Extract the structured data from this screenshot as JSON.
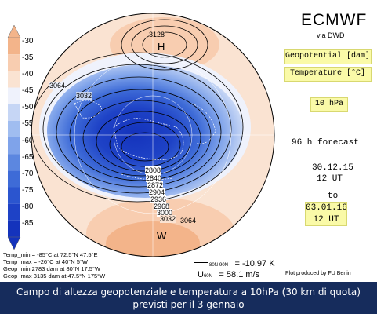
{
  "header": {
    "title": "ECMWF",
    "subtitle": "via DWD"
  },
  "variables": {
    "geopotential": "Geopotential [dam]",
    "temperature": "Temperature [°C]"
  },
  "level": "10 hPa",
  "forecast": {
    "label": "96 h forecast",
    "init_date": "30.12.15",
    "init_time": "12 UT",
    "to_label": "to",
    "valid_date": "03.01.16",
    "valid_time": "12 UT"
  },
  "legend": {
    "labels": [
      "-30",
      "-35",
      "-40",
      "-45",
      "-50",
      "-55",
      "-60",
      "-65",
      "-70",
      "-75",
      "-80",
      "-85"
    ],
    "colors": [
      "#f3b48a",
      "#f8cdb0",
      "#fae3d2",
      "#eff2fc",
      "#c6d6f5",
      "#a0bdf0",
      "#7fa3ea",
      "#5c87e0",
      "#3e6bd7",
      "#2b55cf",
      "#1e42c6",
      "#1433bc"
    ]
  },
  "map": {
    "contour_labels": [
      "3128",
      "3064",
      "3032",
      "2808",
      "2840",
      "2872",
      "2904",
      "2936",
      "2968",
      "3000",
      "3032",
      "3064"
    ],
    "high_label": "H",
    "warm_label": "W"
  },
  "stats": [
    "Temp_min = -85°C at 72.5°N 47.5°E",
    "Temp_max = -26°C at 40°N 5°W",
    "Geop_min 2783 dam at 80°N 17.5°W",
    "Geop_max 3135 dam at 47.5°N 175°W"
  ],
  "mean": {
    "temp_sub": "80N-90N",
    "temp_value": "= -10.97 K",
    "wind_sym": "U",
    "wind_sub": "60N",
    "wind_value": "= 58.1 m/s"
  },
  "credit": "Plot produced by FU Berlin",
  "caption": {
    "line1": "Campo di altezza geopotenziale e temperatura a 10hPa (30 km di quota)",
    "line2": "previsti per il 3 gennaio"
  }
}
